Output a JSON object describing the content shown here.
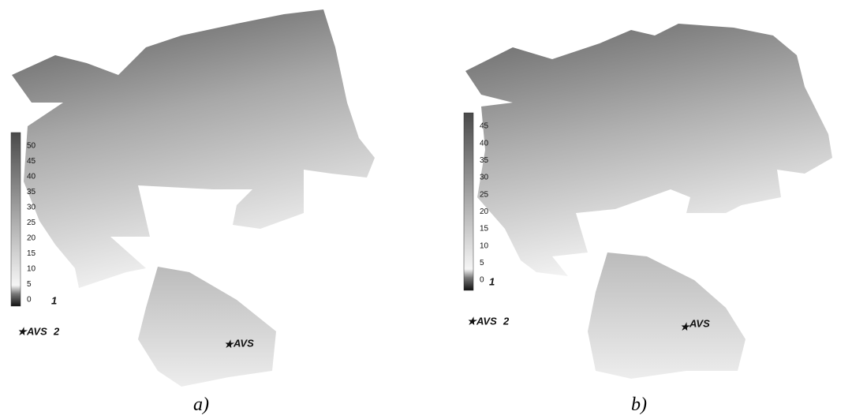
{
  "panels": [
    {
      "caption": "a)",
      "colorbar_ticks": [
        0,
        5,
        10,
        15,
        20,
        25,
        30,
        35,
        40,
        45,
        50
      ],
      "surface_number": "1",
      "legend_marker_label": "AVS",
      "legend_marker_number": "2",
      "site_label": "AVS"
    },
    {
      "caption": "b)",
      "colorbar_ticks": [
        0,
        5,
        10,
        15,
        20,
        25,
        30,
        35,
        40,
        45
      ],
      "surface_number": "1",
      "legend_marker_label": "AVS",
      "legend_marker_number": "2",
      "site_label": "AVS"
    }
  ]
}
